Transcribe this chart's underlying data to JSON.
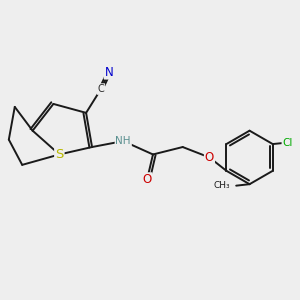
{
  "bg_color": "#eeeeee",
  "bond_color": "#1a1a1a",
  "atom_colors": {
    "S": "#b8b800",
    "N": "#0000cc",
    "O": "#cc0000",
    "Cl": "#00aa00",
    "C": "#2a2a2a",
    "H": "#5a9090"
  },
  "lw": 1.4,
  "fs": 8.5
}
